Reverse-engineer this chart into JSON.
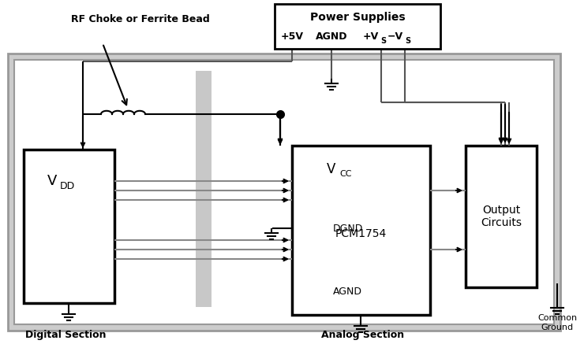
{
  "white": "#ffffff",
  "black": "#000000",
  "gray_border": "#999999",
  "gray_fill": "#cccccc",
  "gray_line": "#aaaaaa",
  "title": "Power Supplies",
  "chip_label": "PCM1754",
  "digital_section": "Digital Section",
  "analog_section": "Analog Section",
  "common_ground": "Common\nGround",
  "rf_choke_label": "RF Choke or Ferrite Bead"
}
